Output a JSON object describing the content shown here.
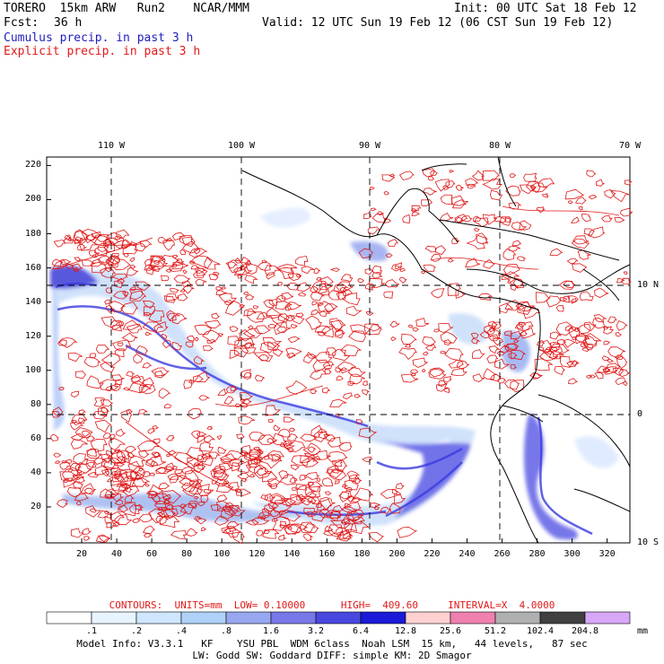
{
  "header": {
    "model_left": "TORERO  15km ARW   Run2    NCAR/MMM",
    "init": "Init: 00 UTC Sat 18 Feb 12",
    "fcst_label": "Fcst:",
    "fcst_value": "36 h",
    "valid": "Valid: 12 UTC Sun 19 Feb 12 (06 CST Sun 19 Feb 12)",
    "field1": "Cumulus precip. in past 3 h",
    "field2": "Explicit precip. in past 3 h"
  },
  "colors": {
    "field1": "#2020c0",
    "field2": "#e01818",
    "coast": "#000000"
  },
  "axes": {
    "top_lon_labels": [
      "110 W",
      "100 W",
      "90 W",
      "80 W",
      "70 W"
    ],
    "right_lat_labels": [
      "10 N",
      "0",
      "10 S"
    ],
    "left_y_ticks": [
      "220",
      "200",
      "180",
      "160",
      "140",
      "120",
      "100",
      "80",
      "60",
      "40",
      "20"
    ],
    "bottom_x_ticks": [
      "20",
      "40",
      "60",
      "80",
      "100",
      "120",
      "140",
      "160",
      "180",
      "200",
      "220",
      "240",
      "260",
      "280",
      "300",
      "320"
    ]
  },
  "contour_info": {
    "text": "CONTOURS:  UNITS=mm  LOW= 0.10000      HIGH=  409.60     INTERVAL=X  4.0000"
  },
  "legend": {
    "labels": [
      ".1",
      ".2",
      ".4",
      ".8",
      "1.6",
      "3.2",
      "6.4",
      "12.8",
      "25.6",
      "51.2",
      "102.4",
      "204.8"
    ],
    "unit": "mm",
    "colors": [
      "#ffffff",
      "#e8f4ff",
      "#cfe6ff",
      "#b0d2f8",
      "#98a8f0",
      "#7878e8",
      "#4848e0",
      "#1a1ad8",
      "#ffd0d0",
      "#f080b0",
      "#b0b0b0",
      "#404040",
      "#d8a8f8"
    ]
  },
  "footer": {
    "line1": "Model Info: V3.3.1   KF    YSU PBL  WDM 6class  Noah LSM  15 km,   44 levels,   87 sec",
    "line2": "LW: Godd SW: Goddard DIFF: simple KM: 2D Smagor"
  }
}
